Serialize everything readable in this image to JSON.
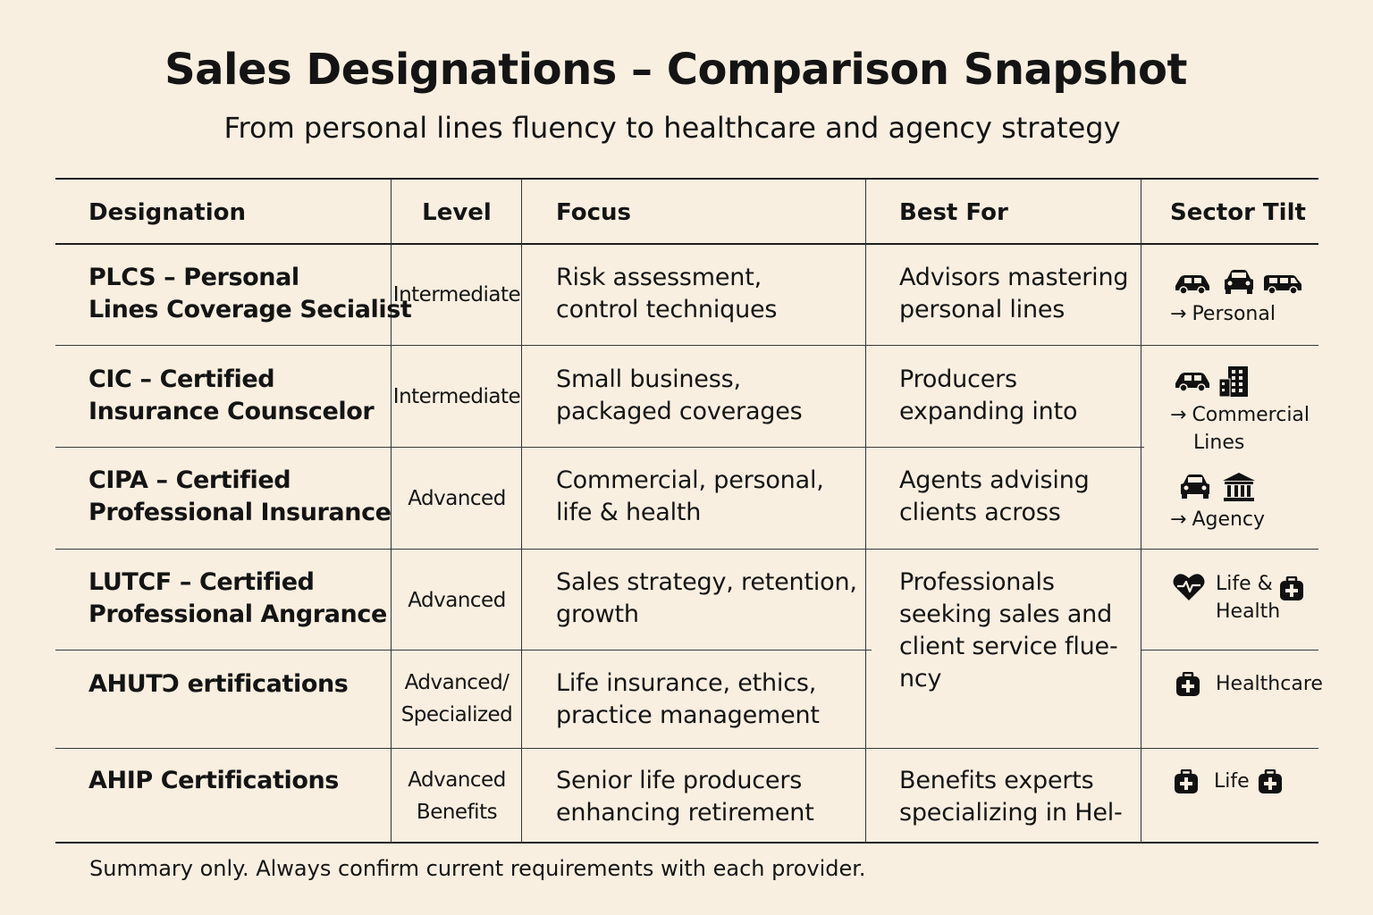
{
  "title": "Sales Designations – Comparison Snapshot",
  "subtitle": "From personal lines fluency to healthcare and agency strategy",
  "headers": {
    "designation": "Designation",
    "level": "Level",
    "focus": "Focus",
    "best_for": "Best For",
    "sector_tilt": "Sector Tilt"
  },
  "rows": [
    {
      "designation": [
        "PLCS – Personal",
        "Lines Coverage Secialist"
      ],
      "level": [
        "Intermediate"
      ],
      "focus": [
        "Risk assessment,",
        "control techniques"
      ],
      "best_for": [
        "Advisors mastering",
        "personal lines"
      ],
      "sector": {
        "arrow": "→",
        "label": [
          "Personal"
        ],
        "icons": [
          "car-icon",
          "car-front-icon",
          "van-icon"
        ]
      }
    },
    {
      "designation": [
        "CIC – Certified",
        "Insurance Counscelor"
      ],
      "level": [
        "Intermediate"
      ],
      "focus": [
        "Small business,",
        "packaged coverages"
      ],
      "best_for": [
        "Producers",
        "expanding into"
      ],
      "sector": {
        "arrow": "→",
        "label": [
          "Commercial",
          "Lines"
        ],
        "icons": [
          "car-icon",
          "office-building-icon"
        ]
      }
    },
    {
      "designation": [
        "CIPA – Certified",
        "Professional Insurance"
      ],
      "level": [
        "Advanced"
      ],
      "focus": [
        "Commercial, personal,",
        "life & health"
      ],
      "best_for": [
        "Agents advising",
        "clients across"
      ],
      "sector": {
        "arrow": "→",
        "label": [
          "Agency"
        ],
        "icons": [
          "car-front-icon",
          "bank-icon"
        ]
      }
    },
    {
      "designation": [
        "LUTCF – Certified",
        "Professional Angrance"
      ],
      "level": [
        "Advanced"
      ],
      "focus": [
        "Sales strategy, retention,",
        "growth"
      ],
      "best_for": [
        "Professionals",
        "seeking sales and",
        "client service flue-",
        "ncy"
      ],
      "sector": {
        "arrow": "",
        "label": [
          "Life &",
          "Health"
        ],
        "icons": [
          "heart-icon",
          "medical-kit-icon"
        ]
      }
    },
    {
      "designation": [
        "AHUTↃ ertifications"
      ],
      "level": [
        "Advanced/",
        "Specialized"
      ],
      "focus": [
        "Life insurance, ethics,",
        "practice management"
      ],
      "best_for": [],
      "sector": {
        "arrow": "",
        "label": [
          "Healthcare"
        ],
        "icons": [
          "medical-kit-icon"
        ]
      }
    },
    {
      "designation": [
        "AHIP Certifications"
      ],
      "level": [
        "Advanced",
        "Benefits"
      ],
      "focus": [
        "Senior life producers",
        "enhancing retirement"
      ],
      "best_for": [
        "Benefits experts",
        "specializing in Hel-"
      ],
      "sector": {
        "arrow": "",
        "label": [
          "Life"
        ],
        "icons": [
          "medical-kit-icon",
          "medical-kit-icon"
        ]
      }
    }
  ],
  "footnote": "Summary only. Always confirm current requirements with each provider."
}
